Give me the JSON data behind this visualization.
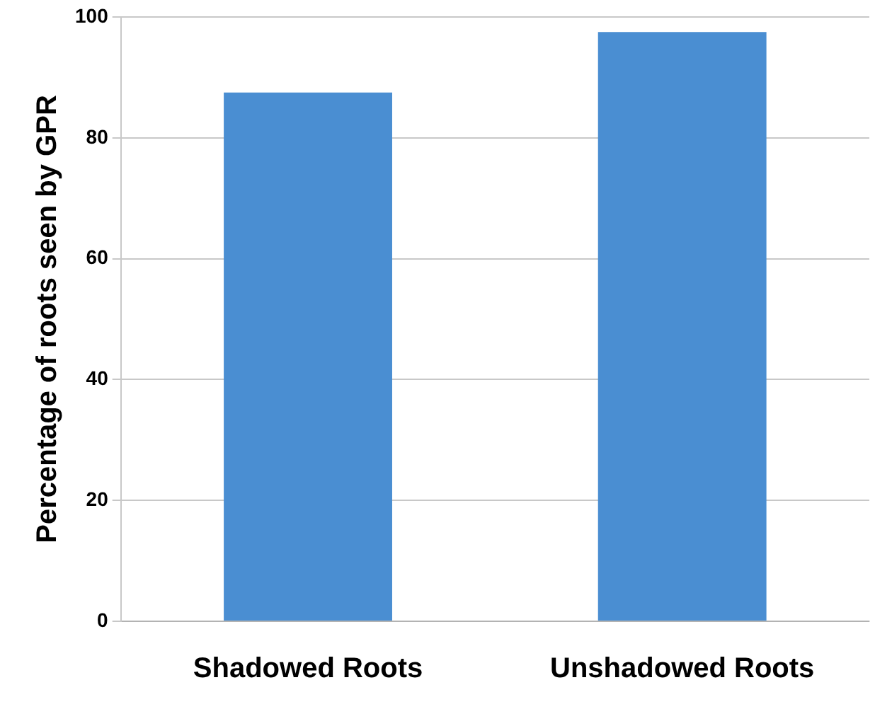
{
  "chart_data": {
    "type": "bar",
    "ylabel": "Percentage of roots seen by GPR",
    "categories": [
      "Shadowed Roots",
      "Unshadowed Roots"
    ],
    "values": [
      87.5,
      97.5
    ],
    "color": "#4a8ed2",
    "ylim": [
      0,
      100
    ],
    "yticks": [
      0,
      20,
      40,
      60,
      80,
      100
    ],
    "grid": "y"
  }
}
